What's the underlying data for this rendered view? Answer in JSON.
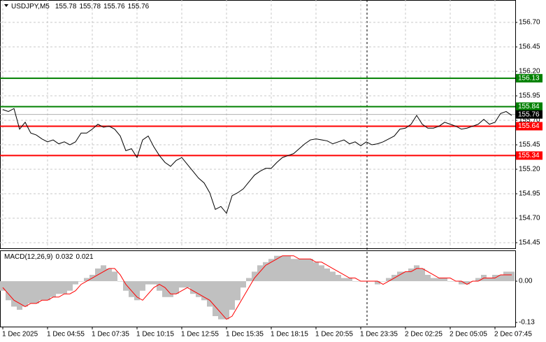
{
  "chart_data": [
    {
      "type": "line",
      "title": "USDJPY,M5",
      "ohlc": [
        155.78,
        155.78,
        155.76,
        155.76
      ],
      "color": "#000000",
      "grid": true,
      "categories": [
        "1 Dec 2025",
        null,
        null,
        null,
        null,
        null,
        null,
        null,
        "1 Dec 04:55",
        null,
        null,
        null,
        null,
        null,
        null,
        null,
        "1 Dec 07:35",
        null,
        null,
        null,
        null,
        null,
        null,
        null,
        "1 Dec 10:15",
        null,
        null,
        null,
        null,
        null,
        null,
        null,
        "1 Dec 12:55",
        null,
        null,
        null,
        null,
        null,
        null,
        null,
        "1 Dec 15:35",
        null,
        null,
        null,
        null,
        null,
        null,
        null,
        "1 Dec 18:15",
        null,
        null,
        null,
        null,
        null,
        null,
        null,
        "1 Dec 20:55",
        null,
        null,
        null,
        null,
        null,
        null,
        null,
        "1 Dec 23:35",
        null,
        null,
        null,
        null,
        null,
        null,
        null,
        "2 Dec 02:25",
        null,
        null,
        null,
        null,
        null,
        null,
        null,
        "2 Dec 05:05",
        null,
        null,
        null,
        null,
        null,
        null,
        null,
        "2 Dec 07:45",
        null,
        null,
        null
      ],
      "values": [
        155.81,
        155.79,
        155.82,
        155.61,
        155.68,
        155.57,
        155.55,
        155.51,
        155.48,
        155.5,
        155.46,
        155.48,
        155.45,
        155.48,
        155.57,
        155.57,
        155.61,
        155.66,
        155.63,
        155.64,
        155.61,
        155.54,
        155.39,
        155.41,
        155.32,
        155.5,
        155.54,
        155.43,
        155.34,
        155.27,
        155.23,
        155.29,
        155.32,
        155.25,
        155.18,
        155.11,
        155.06,
        154.96,
        154.79,
        154.82,
        154.75,
        154.93,
        154.96,
        155.0,
        155.07,
        155.14,
        155.18,
        155.21,
        155.21,
        155.27,
        155.32,
        155.34,
        155.36,
        155.41,
        155.46,
        155.5,
        155.51,
        155.5,
        155.49,
        155.46,
        155.48,
        155.5,
        155.46,
        155.48,
        155.44,
        155.48,
        155.45,
        155.46,
        155.48,
        155.51,
        155.54,
        155.61,
        155.62,
        155.66,
        155.75,
        155.66,
        155.62,
        155.62,
        155.64,
        155.68,
        155.66,
        155.64,
        155.61,
        155.62,
        155.64,
        155.66,
        155.71,
        155.66,
        155.68,
        155.77,
        155.79,
        155.75
      ],
      "ylim": [
        154.393,
        156.929
      ],
      "yticks": [
        {
          "value": 156.7,
          "label": "156.70"
        },
        156.45,
        {
          "value": 156.2,
          "label": "156.20"
        },
        155.95,
        {
          "value": 155.7,
          "label": "155.70"
        },
        155.45,
        {
          "value": 155.2,
          "label": "155.20"
        },
        154.95,
        {
          "value": 154.7,
          "label": "154.70"
        },
        154.45
      ],
      "levels": [
        {
          "value": 156.13,
          "color": "#008000"
        },
        {
          "value": 155.84,
          "color": "#008000"
        },
        {
          "value": 155.64,
          "color": "#ff0000"
        },
        {
          "value": 155.34,
          "color": "#ff0000"
        }
      ],
      "last": 155.76
    },
    {
      "type": "macd",
      "title": "MACD(12,26,9)",
      "indicator_values": [
        0.032,
        0.021
      ],
      "color": "#c0c0c0",
      "signal_color": "#ff0000",
      "values": [
        -0.03,
        -0.06,
        -0.08,
        -0.09,
        -0.08,
        -0.07,
        -0.07,
        -0.06,
        -0.06,
        -0.05,
        -0.04,
        -0.04,
        -0.03,
        -0.01,
        0.0,
        0.01,
        0.02,
        0.04,
        0.05,
        0.04,
        0.03,
        0.0,
        -0.03,
        -0.05,
        -0.06,
        -0.03,
        -0.01,
        -0.01,
        -0.03,
        -0.05,
        -0.05,
        -0.04,
        -0.02,
        -0.02,
        -0.04,
        -0.05,
        -0.06,
        -0.08,
        -0.11,
        -0.12,
        -0.12,
        -0.09,
        -0.06,
        -0.02,
        0.01,
        0.03,
        0.05,
        0.06,
        0.07,
        0.08,
        0.08,
        0.08,
        0.07,
        0.07,
        0.07,
        0.07,
        0.06,
        0.05,
        0.04,
        0.03,
        0.02,
        0.01,
        0.01,
        0.0,
        0.0,
        0.0,
        0.0,
        -0.01,
        0.0,
        0.01,
        0.02,
        0.03,
        0.03,
        0.04,
        0.05,
        0.04,
        0.02,
        0.01,
        0.01,
        0.01,
        0.0,
        0.0,
        -0.01,
        -0.01,
        0.0,
        0.01,
        0.02,
        0.01,
        0.02,
        0.02,
        0.03,
        0.03
      ],
      "signal_values": [
        -0.02,
        -0.04,
        -0.06,
        -0.07,
        -0.08,
        -0.07,
        -0.07,
        -0.06,
        -0.06,
        -0.05,
        -0.05,
        -0.04,
        -0.04,
        -0.03,
        -0.01,
        0.0,
        0.01,
        0.02,
        0.03,
        0.04,
        0.04,
        0.02,
        -0.01,
        -0.03,
        -0.05,
        -0.06,
        -0.04,
        -0.02,
        -0.01,
        -0.02,
        -0.04,
        -0.04,
        -0.03,
        -0.02,
        -0.03,
        -0.04,
        -0.05,
        -0.06,
        -0.08,
        -0.1,
        -0.12,
        -0.11,
        -0.08,
        -0.05,
        -0.02,
        0.01,
        0.03,
        0.05,
        0.06,
        0.07,
        0.08,
        0.08,
        0.08,
        0.07,
        0.07,
        0.07,
        0.06,
        0.06,
        0.05,
        0.04,
        0.03,
        0.02,
        0.01,
        0.01,
        0.0,
        0.0,
        0.0,
        0.0,
        -0.01,
        0.0,
        0.01,
        0.02,
        0.03,
        0.03,
        0.04,
        0.04,
        0.03,
        0.02,
        0.01,
        0.01,
        0.01,
        0.0,
        0.0,
        -0.01,
        0.0,
        0.0,
        0.01,
        0.01,
        0.01,
        0.02,
        0.02,
        0.02
      ],
      "ylim": [
        -0.143,
        0.097
      ],
      "yticks": [
        {
          "value": 0,
          "label": "0.00"
        },
        -0.13
      ]
    }
  ]
}
